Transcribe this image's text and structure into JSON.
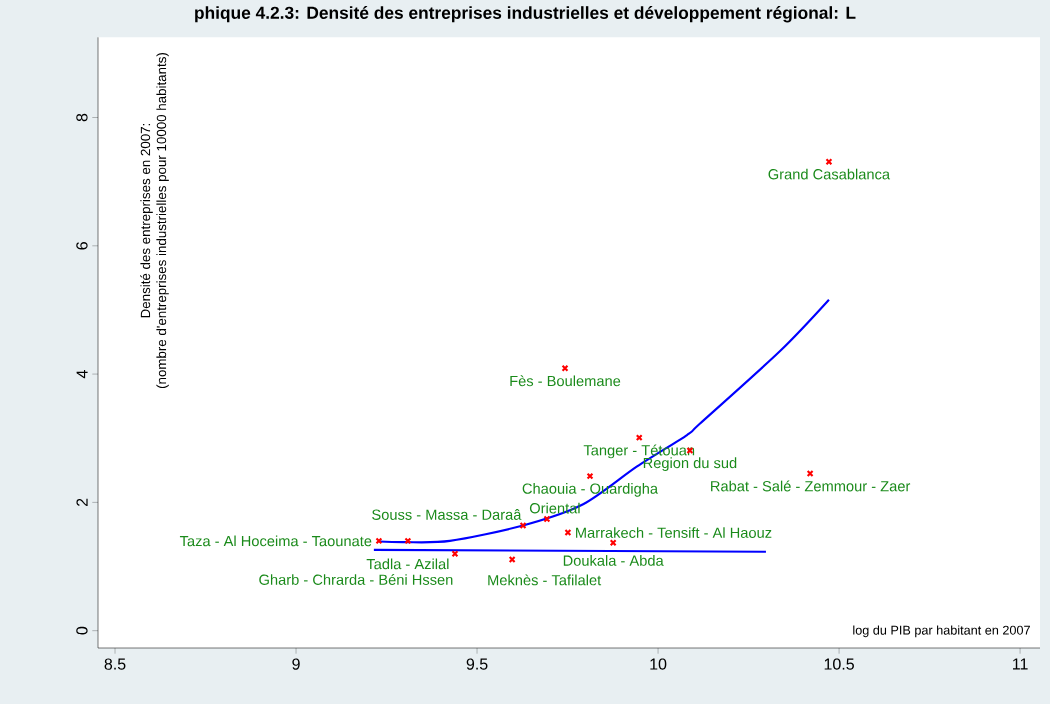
{
  "chart_data": {
    "type": "scatter",
    "title": "phique 4.2.3: Densité des entreprises industrielles et développement régional: L",
    "xlabel": "log du PIB par habitant en 2007",
    "ylabel": [
      "Densité des entreprises en 2007:",
      "(nombre d'entreprises industrielles pour 10000 habitants)"
    ],
    "xlim": [
      8.453,
      11.055
    ],
    "ylim": [
      -0.27,
      9.25
    ],
    "xticks": [
      {
        "value": 8.5,
        "label": "8.5"
      },
      {
        "value": 9,
        "label": "9"
      },
      {
        "value": 9.5,
        "label": "9.5"
      },
      {
        "value": 10,
        "label": "10"
      },
      {
        "value": 10.5,
        "label": "10.5"
      },
      {
        "value": 11,
        "label": "11"
      }
    ],
    "yticks": [
      {
        "value": 0,
        "label": "0"
      },
      {
        "value": 2,
        "label": "2"
      },
      {
        "value": 4,
        "label": "4"
      },
      {
        "value": 6,
        "label": "6"
      },
      {
        "value": 8,
        "label": "8"
      }
    ],
    "grid": false,
    "marker": "cross",
    "series": [
      {
        "color": "#ff0000",
        "x": [
          10.472,
          9.743,
          9.948,
          10.088,
          9.812,
          10.42,
          9.229,
          9.309,
          9.627,
          9.693,
          9.751,
          9.876,
          9.439,
          9.597
        ],
        "values": [
          7.31,
          4.09,
          3.01,
          2.81,
          2.41,
          2.45,
          1.4,
          1.4,
          1.64,
          1.74,
          1.53,
          1.37,
          1.2,
          1.11
        ]
      },
      {
        "type": "line",
        "color": "#0000ff",
        "marker": "none",
        "x": [
          9.229,
          9.3,
          9.425,
          9.627,
          9.793,
          9.942,
          10.08,
          10.116,
          10.337,
          10.472
        ],
        "values": [
          1.39,
          1.38,
          1.4,
          1.64,
          1.97,
          2.56,
          3.05,
          3.23,
          4.36,
          5.16
        ]
      },
      {
        "type": "line",
        "color": "#0000ff",
        "marker": "none",
        "x": [
          9.215,
          10.298
        ],
        "values": [
          1.26,
          1.23
        ]
      }
    ],
    "annotations": [
      {
        "text": "Grand Casablanca",
        "x": 10.472,
        "y": 7.31
      },
      {
        "text": "Fès - Boulemane",
        "x": 9.743,
        "y": 4.09
      },
      {
        "text": "Tanger - Tétouan",
        "x": 9.948,
        "y": 3.01
      },
      {
        "text": "Region du sud",
        "x": 10.088,
        "y": 2.81
      },
      {
        "text": "Chaouia - Ouardigha",
        "x": 9.812,
        "y": 2.41
      },
      {
        "text": "Rabat - Salé - Zemmour - Zaer",
        "x": 10.42,
        "y": 2.45
      },
      {
        "text": "Taza - Al Hoceima - Taounate",
        "x": 9.229,
        "y": 1.4
      },
      {
        "text": "Tadla - Azilal",
        "x": 9.309,
        "y": 1.4
      },
      {
        "text": "Souss - Massa - Daraâ",
        "x": 9.627,
        "y": 1.64
      },
      {
        "text": "Oriental",
        "x": 9.693,
        "y": 1.74
      },
      {
        "text": "Marrakech - Tensift - Al Haouz",
        "x": 9.751,
        "y": 1.53
      },
      {
        "text": "Doukala - Abda",
        "x": 9.876,
        "y": 1.37
      },
      {
        "text": "Gharb - Chrarda - Béni Hssen",
        "x": 9.439,
        "y": 1.2
      },
      {
        "text": "Meknès - Tafilalet",
        "x": 9.597,
        "y": 1.11
      }
    ]
  }
}
